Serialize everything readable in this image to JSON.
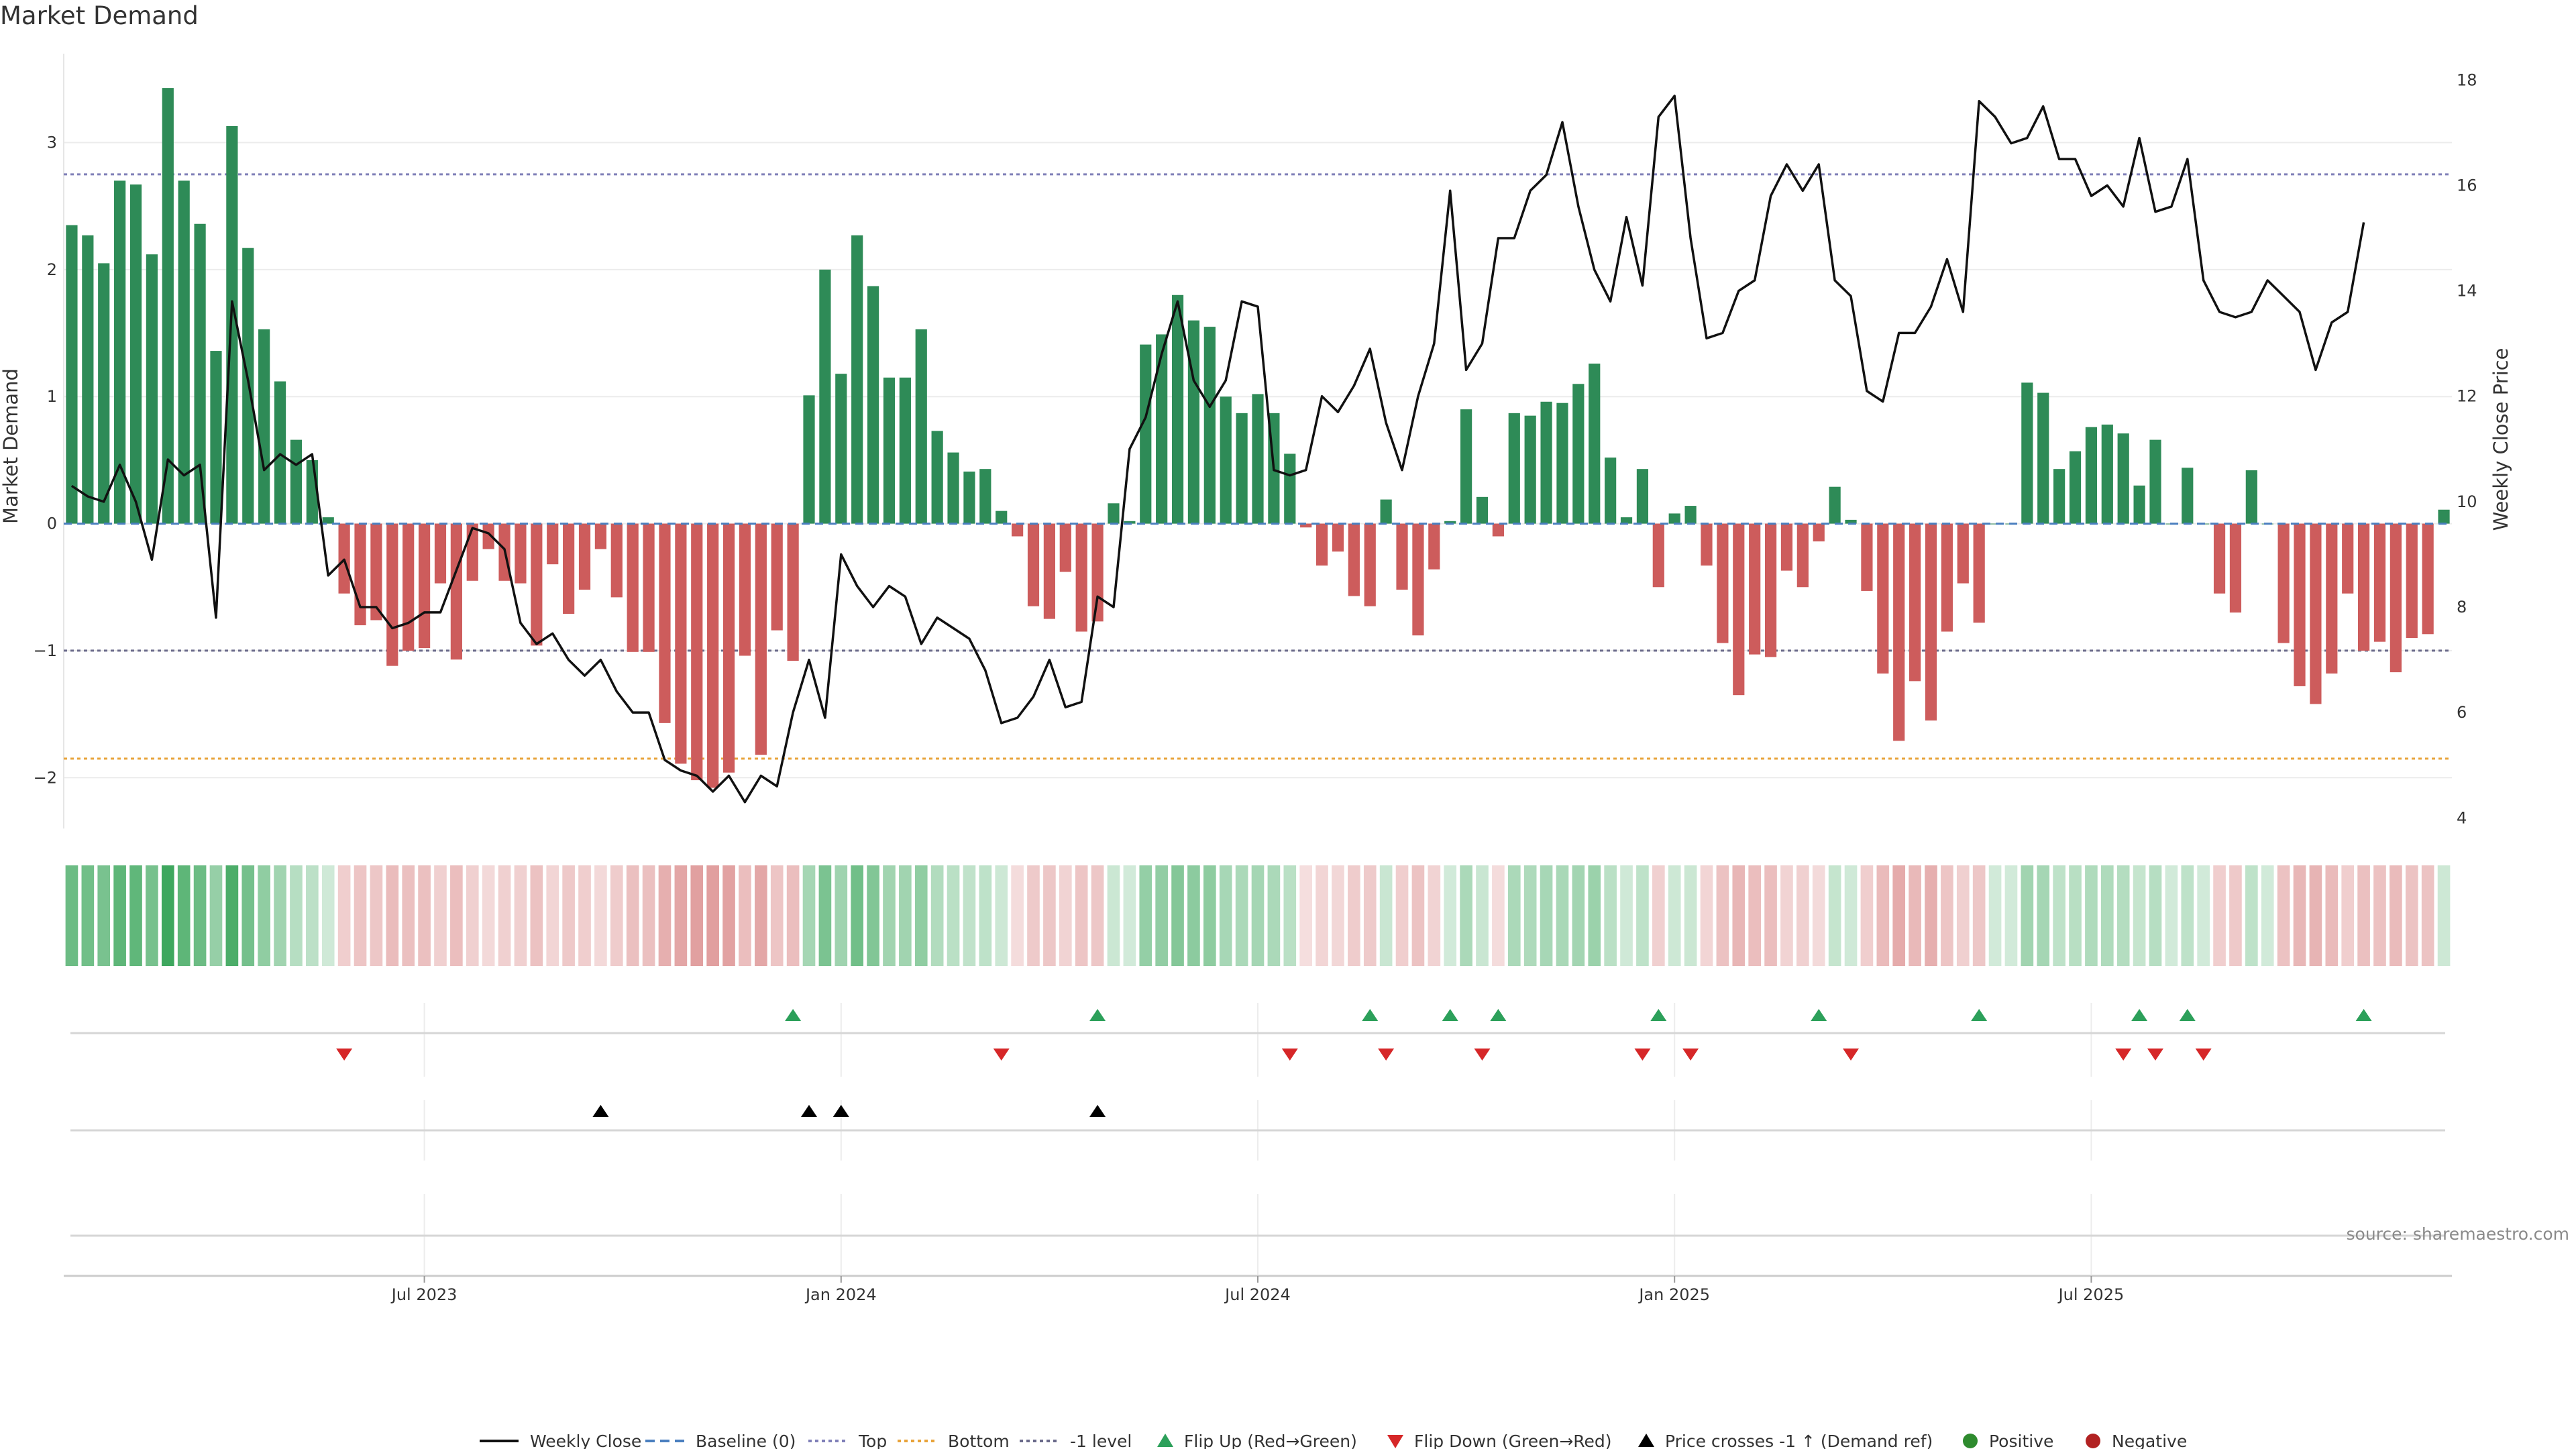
{
  "chart_data": {
    "type": "bar",
    "title": "Market Demand",
    "ylabel_left": "Market Demand",
    "ylabel_right": "Weekly Close Price",
    "ylim_left": [
      -2.4,
      3.7
    ],
    "yticks_left": [
      -2,
      -1,
      0,
      1,
      2,
      3
    ],
    "yticks_left_labels": [
      "−2",
      "−1",
      "0",
      "1",
      "2",
      "3"
    ],
    "ylim_right": [
      3.8,
      18.5
    ],
    "yticks_right": [
      4,
      6,
      8,
      10,
      12,
      14,
      16,
      18
    ],
    "xtick_labels": [
      "Jul 2023",
      "Jan 2024",
      "Jul 2024",
      "Jan 2025",
      "Jul 2025"
    ],
    "xtick_weeks": [
      22,
      48,
      74,
      100,
      126
    ],
    "reference_lines": {
      "top": 2.75,
      "bottom": -1.85,
      "minus_one": -1,
      "baseline": 0
    },
    "colors": {
      "positive": "#2e8b57",
      "negative": "#cd5c5c",
      "price": "#111111",
      "top": "#8080b8",
      "bottom": "#e8a33a",
      "flip_up": "#2ca05a",
      "flip_down": "#d62728",
      "cross": "#000000"
    },
    "demand": [
      2.35,
      2.27,
      2.05,
      2.7,
      2.67,
      2.12,
      3.43,
      2.7,
      2.36,
      1.36,
      3.13,
      2.17,
      1.53,
      1.12,
      0.66,
      0.5,
      0.05,
      -0.55,
      -0.8,
      -0.76,
      -1.12,
      -1.0,
      -0.98,
      -0.47,
      -1.07,
      -0.45,
      -0.2,
      -0.45,
      -0.47,
      -0.96,
      -0.32,
      -0.71,
      -0.52,
      -0.2,
      -0.58,
      -1.01,
      -1.01,
      -1.57,
      -1.89,
      -2.02,
      -2.08,
      -1.96,
      -1.04,
      -1.82,
      -0.84,
      -1.08,
      1.01,
      2.0,
      1.18,
      2.27,
      1.87,
      1.15,
      1.15,
      1.53,
      0.73,
      0.56,
      0.41,
      0.43,
      0.1,
      -0.1,
      -0.65,
      -0.75,
      -0.38,
      -0.85,
      -0.77,
      0.16,
      0.02,
      1.41,
      1.49,
      1.8,
      1.6,
      1.55,
      1.0,
      0.87,
      1.02,
      0.87,
      0.55,
      -0.03,
      -0.33,
      -0.22,
      -0.57,
      -0.65,
      0.19,
      -0.52,
      -0.88,
      -0.36,
      0.02,
      0.9,
      0.21,
      -0.1,
      0.87,
      0.85,
      0.96,
      0.95,
      1.1,
      1.26,
      0.52,
      0.05,
      0.43,
      -0.5,
      0.08,
      0.14,
      -0.33,
      -0.94,
      -1.35,
      -1.03,
      -1.05,
      -0.37,
      -0.5,
      -0.14,
      0.29,
      0.03,
      -0.53,
      -1.18,
      -1.71,
      -1.24,
      -1.55,
      -0.85,
      -0.47,
      -0.78,
      0.0,
      0.0,
      1.11,
      1.03,
      0.43,
      0.57,
      0.76,
      0.78,
      0.71,
      0.3,
      0.66,
      0.0,
      0.44,
      0.0,
      -0.55,
      -0.7,
      0.42,
      0.0,
      -0.94,
      -1.28,
      -1.42,
      -1.18,
      -0.55,
      -1.0,
      -0.93,
      -1.17,
      -0.9,
      -0.87,
      0.11
    ],
    "price": [
      10.3,
      10.1,
      10.0,
      10.7,
      10.0,
      8.9,
      10.8,
      10.5,
      10.7,
      7.8,
      13.8,
      12.3,
      10.6,
      10.9,
      10.7,
      10.9,
      8.6,
      8.9,
      8.0,
      8.0,
      7.6,
      7.7,
      7.9,
      7.9,
      8.7,
      9.5,
      9.4,
      9.1,
      7.7,
      7.3,
      7.5,
      7.0,
      6.7,
      7.0,
      6.4,
      6.0,
      6.0,
      5.1,
      4.9,
      4.8,
      4.5,
      4.8,
      4.3,
      4.8,
      4.6,
      6.0,
      7.0,
      5.9,
      9.0,
      8.4,
      8.0,
      8.4,
      8.2,
      7.3,
      7.8,
      7.6,
      7.4,
      6.8,
      5.8,
      5.9,
      6.3,
      7.0,
      6.1,
      6.2,
      8.2,
      8.0,
      11.0,
      11.6,
      12.8,
      13.8,
      12.3,
      11.8,
      12.3,
      13.8,
      13.7,
      10.6,
      10.5,
      10.6,
      12.0,
      11.7,
      12.2,
      12.9,
      11.5,
      10.6,
      12.0,
      13.0,
      15.9,
      12.5,
      13.0,
      15.0,
      15.0,
      15.9,
      16.2,
      17.2,
      15.6,
      14.4,
      13.8,
      15.4,
      14.1,
      17.3,
      17.7,
      15.0,
      13.1,
      13.2,
      14.0,
      14.2,
      15.8,
      16.4,
      15.9,
      16.4,
      14.2,
      13.9,
      12.1,
      11.9,
      13.2,
      13.2,
      13.7,
      14.6,
      13.6,
      17.6,
      17.3,
      16.8,
      16.9,
      17.5,
      16.5,
      16.5,
      15.8,
      16.0,
      15.6,
      16.9,
      15.5,
      15.6,
      16.5,
      14.2,
      13.6,
      13.5,
      13.6,
      14.2,
      13.9,
      13.6,
      12.5,
      13.4,
      13.6,
      15.3
    ],
    "flip_up_weeks": [
      45,
      64,
      81,
      86,
      89,
      99,
      109,
      119,
      129,
      132,
      143
    ],
    "flip_down_weeks": [
      17,
      58,
      76,
      82,
      88,
      98,
      101,
      111,
      128,
      130,
      133
    ],
    "price_cross_weeks": [
      33,
      46,
      48,
      64
    ]
  },
  "source_text": "source: sharemaestro.com",
  "legend": [
    {
      "label": "Weekly Close",
      "kind": "line"
    },
    {
      "label": "Baseline (0)",
      "kind": "dash"
    },
    {
      "label": "Top",
      "kind": "dot-top"
    },
    {
      "label": "Bottom",
      "kind": "dot-bottom"
    },
    {
      "label": "-1 level",
      "kind": "dot-minus"
    },
    {
      "label": "Flip Up (Red→Green)",
      "kind": "tri-up"
    },
    {
      "label": "Flip Down (Green→Red)",
      "kind": "tri-down"
    },
    {
      "label": "Price crosses -1 ↑ (Demand ref)",
      "kind": "tri-cross"
    },
    {
      "label": "Positive",
      "kind": "dot-pos"
    },
    {
      "label": "Negative",
      "kind": "dot-neg"
    }
  ]
}
